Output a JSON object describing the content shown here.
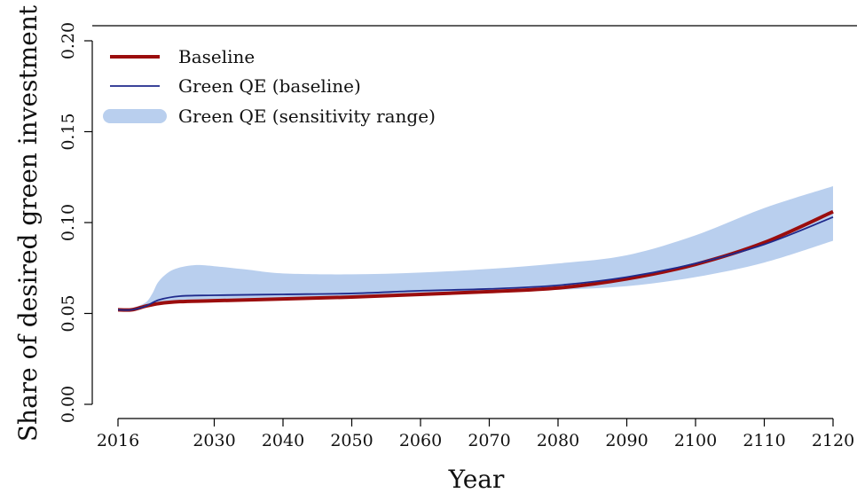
{
  "chart_data": {
    "type": "line",
    "xlabel": "Year",
    "ylabel": "Share of desired green investment",
    "xlim": [
      2016,
      2120
    ],
    "ylim": [
      0,
      0.2
    ],
    "x_ticks": [
      2016,
      2030,
      2040,
      2050,
      2060,
      2070,
      2080,
      2090,
      2100,
      2110,
      2120
    ],
    "y_ticks": [
      0.0,
      0.05,
      0.1,
      0.15,
      0.2
    ],
    "y_tick_labels": [
      "0.00",
      "0.05",
      "0.10",
      "0.15",
      "0.20"
    ],
    "legend_position": "top-left",
    "colors": {
      "baseline": "#9b0d0d",
      "green_qe": "#1f2a8c",
      "band": "#b9cfee"
    },
    "series": [
      {
        "name": "Baseline",
        "x": [
          2016,
          2018,
          2020,
          2022,
          2025,
          2030,
          2040,
          2050,
          2060,
          2070,
          2080,
          2090,
          2100,
          2110,
          2120
        ],
        "y": [
          0.052,
          0.052,
          0.054,
          0.0555,
          0.0565,
          0.057,
          0.058,
          0.059,
          0.0605,
          0.062,
          0.064,
          0.069,
          0.077,
          0.089,
          0.106
        ]
      },
      {
        "name": "Green QE (baseline)",
        "x": [
          2016,
          2018,
          2020,
          2022,
          2025,
          2030,
          2040,
          2050,
          2060,
          2070,
          2080,
          2090,
          2100,
          2110,
          2120
        ],
        "y": [
          0.052,
          0.052,
          0.054,
          0.0575,
          0.0595,
          0.06,
          0.0605,
          0.061,
          0.0625,
          0.0635,
          0.0655,
          0.07,
          0.0775,
          0.088,
          0.103
        ]
      },
      {
        "name": "Green QE (sensitivity range)",
        "x": [
          2016,
          2018,
          2020,
          2021,
          2022,
          2024,
          2027,
          2030,
          2035,
          2040,
          2050,
          2060,
          2070,
          2080,
          2090,
          2100,
          2110,
          2120
        ],
        "upper": [
          0.052,
          0.053,
          0.056,
          0.061,
          0.068,
          0.074,
          0.0765,
          0.076,
          0.074,
          0.072,
          0.0715,
          0.0725,
          0.0745,
          0.0775,
          0.082,
          0.093,
          0.108,
          0.12
        ],
        "lower": [
          0.052,
          0.052,
          0.054,
          0.055,
          0.0555,
          0.0562,
          0.0568,
          0.057,
          0.0575,
          0.058,
          0.059,
          0.0605,
          0.0615,
          0.063,
          0.065,
          0.07,
          0.078,
          0.09
        ]
      }
    ]
  }
}
